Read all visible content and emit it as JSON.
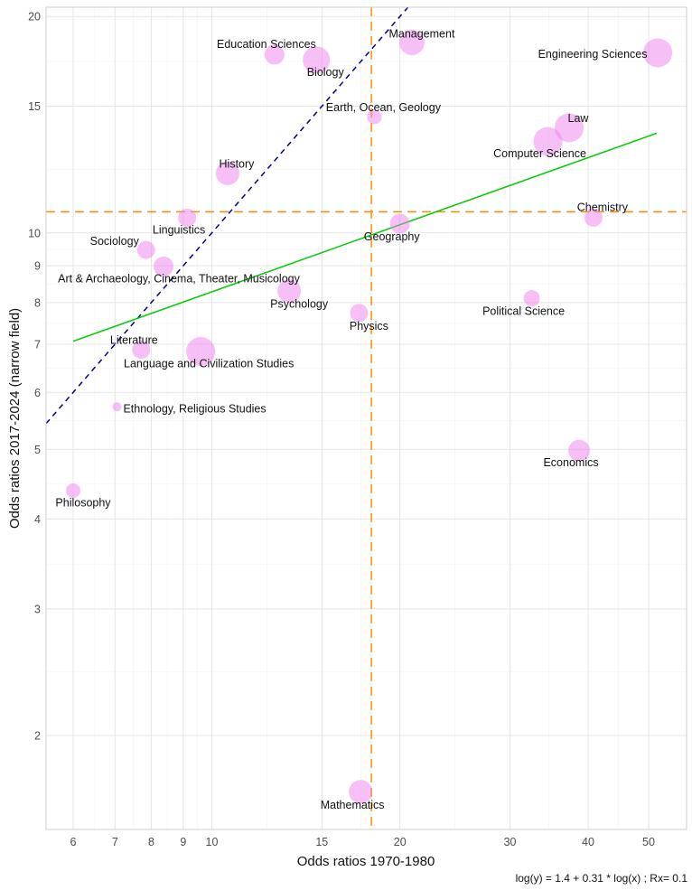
{
  "chart_data": {
    "type": "scatter",
    "xlabel": "Odds ratios 1970-1980",
    "ylabel": "Odds ratios 2017-2024 (narrow field)",
    "x_scale": "log",
    "y_scale": "log",
    "xlim": [
      5.43,
      57.5
    ],
    "ylim": [
      1.48,
      20.6
    ],
    "x_ticks": [
      6,
      7,
      8,
      9,
      10,
      15,
      20,
      30,
      40,
      50
    ],
    "y_ticks": [
      2,
      3,
      4,
      5,
      6,
      7,
      8,
      9,
      10,
      15,
      20
    ],
    "grid": true,
    "point_color": "#ee82ee",
    "points": [
      {
        "label": "Philosophy",
        "x": 6.0,
        "y": 4.38,
        "size": 8
      },
      {
        "label": "Ethnology, Religious Studies",
        "x": 7.05,
        "y": 5.73,
        "size": 5
      },
      {
        "label": "Literature",
        "x": 7.71,
        "y": 6.88,
        "size": 10
      },
      {
        "label": "Language and Civilization Studies",
        "x": 9.6,
        "y": 6.84,
        "size": 16
      },
      {
        "label": "Sociology",
        "x": 7.85,
        "y": 9.47,
        "size": 10
      },
      {
        "label": "Art & Archaeology, Cinema, Theater, Musicology",
        "x": 8.37,
        "y": 8.98,
        "size": 11
      },
      {
        "label": "Linguistics",
        "x": 9.13,
        "y": 10.5,
        "size": 10
      },
      {
        "label": "History",
        "x": 10.6,
        "y": 12.1,
        "size": 13
      },
      {
        "label": "Education Sciences",
        "x": 12.6,
        "y": 17.7,
        "size": 11
      },
      {
        "label": "Biology",
        "x": 14.7,
        "y": 17.4,
        "size": 15
      },
      {
        "label": "Psychology",
        "x": 13.3,
        "y": 8.3,
        "size": 13
      },
      {
        "label": "Physics",
        "x": 17.2,
        "y": 7.74,
        "size": 10
      },
      {
        "label": "Mathematics",
        "x": 17.3,
        "y": 1.67,
        "size": 13
      },
      {
        "label": "Earth, Ocean, Geology",
        "x": 18.2,
        "y": 14.5,
        "size": 8
      },
      {
        "label": "Management",
        "x": 20.9,
        "y": 18.4,
        "size": 14
      },
      {
        "label": "Geography",
        "x": 20.0,
        "y": 10.3,
        "size": 11
      },
      {
        "label": "Political Science",
        "x": 32.5,
        "y": 8.11,
        "size": 9
      },
      {
        "label": "Computer Science",
        "x": 34.5,
        "y": 13.4,
        "size": 16
      },
      {
        "label": "Law",
        "x": 37.3,
        "y": 14.0,
        "size": 16
      },
      {
        "label": "Chemistry",
        "x": 40.8,
        "y": 10.5,
        "size": 10
      },
      {
        "label": "Economics",
        "x": 38.7,
        "y": 4.98,
        "size": 12
      },
      {
        "label": "Engineering Sciences",
        "x": 51.7,
        "y": 17.8,
        "size": 16
      }
    ],
    "reference_lines": {
      "vertical_x": 18.0,
      "horizontal_y": 10.7,
      "ref_color": "#ff8c00",
      "identity_line": {
        "slope": 1,
        "color": "#00008b",
        "style": "dashed"
      },
      "fit_line": {
        "intercept": 1.4,
        "slope": 0.31,
        "x_range": [
          6.0,
          51.5
        ],
        "color": "#00cc00"
      }
    },
    "annotation": "log(y) = 1.4 + 0.31 * log(x) ; Rx= 0.1"
  }
}
